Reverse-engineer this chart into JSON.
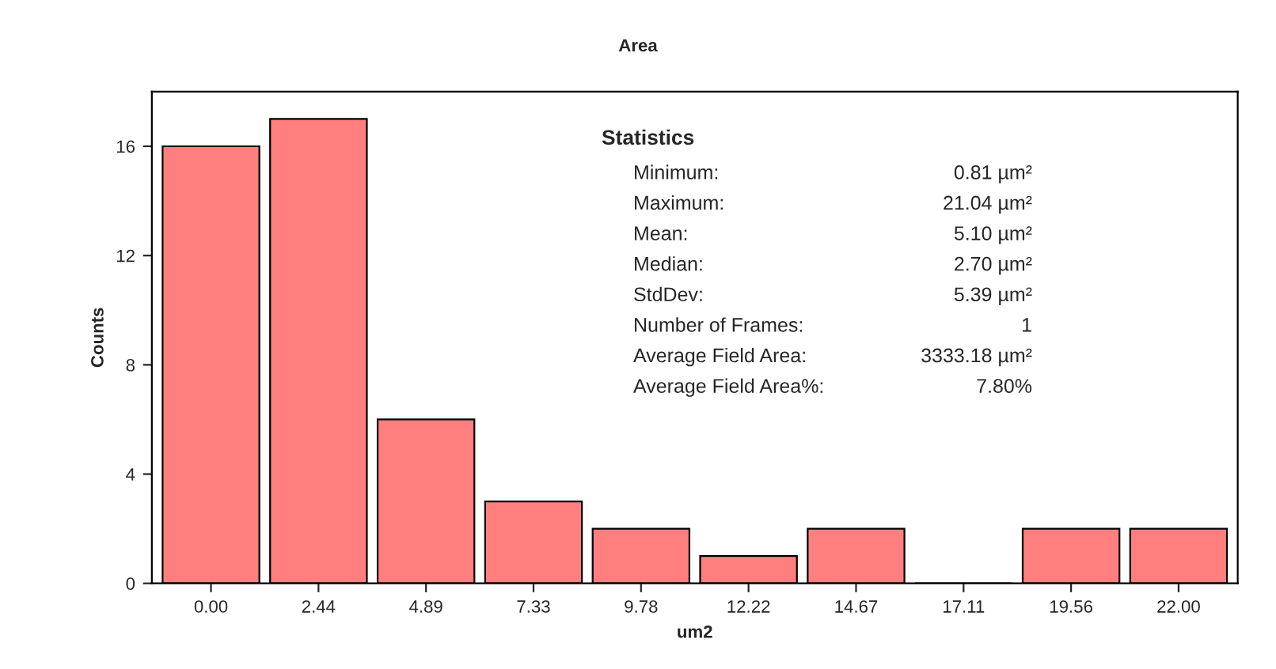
{
  "chart_data": {
    "type": "bar",
    "title": "Area",
    "xlabel": "um2",
    "ylabel": "Counts",
    "categories": [
      "0.00",
      "2.44",
      "4.89",
      "7.33",
      "9.78",
      "12.22",
      "14.67",
      "17.11",
      "19.56",
      "22.00"
    ],
    "values": [
      16,
      17,
      6,
      3,
      2,
      1,
      2,
      0,
      2,
      2
    ],
    "color": "#ff7f7f",
    "ylim": [
      0,
      18
    ],
    "yticks": [
      0,
      4,
      8,
      12,
      16
    ],
    "grid": false,
    "legend": false,
    "annotations": [
      "Statistics",
      "Minimum:",
      "0.81 µm²",
      "Maximum:",
      "21.04 µm²",
      "Mean:",
      "5.10 µm²",
      "Median:",
      "2.70 µm²",
      "StdDev:",
      "5.39 µm²",
      "Number of Frames:",
      "1",
      "Average Field Area:",
      "3333.18 µm²",
      "Average Field Area%:",
      "7.80%"
    ]
  }
}
